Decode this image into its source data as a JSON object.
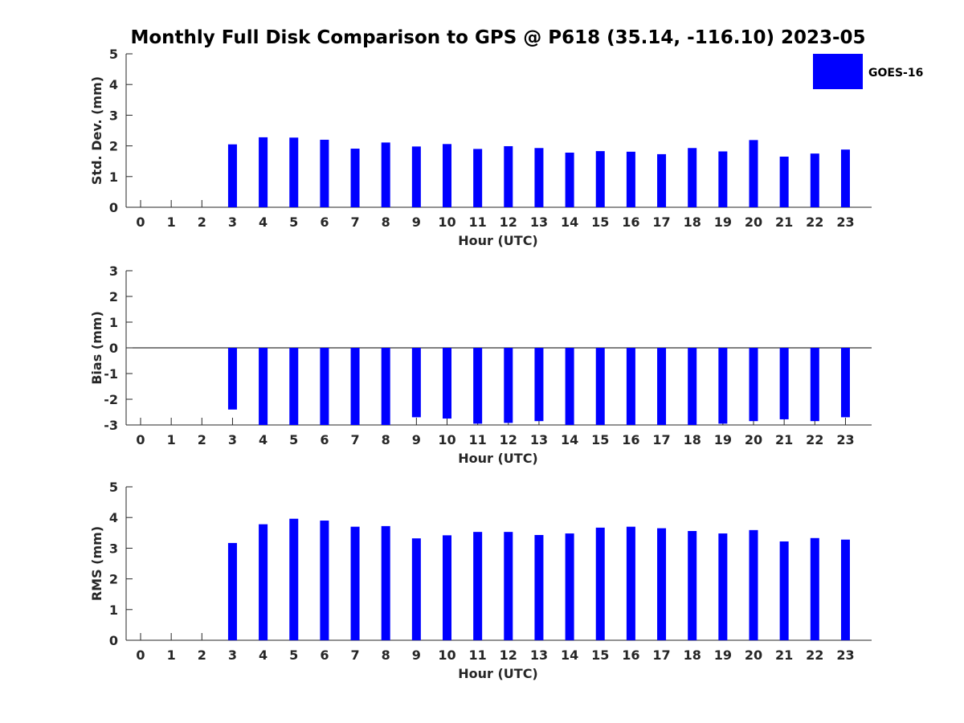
{
  "colors": {
    "bar": "#0000FF",
    "axis": "#262626",
    "background": "#FFFFFF"
  },
  "legend": {
    "label": "GOES-16",
    "placement": "top-right"
  },
  "chart_data": [
    {
      "type": "bar",
      "title": "Monthly Full Disk Comparison to GPS @ P618 (35.14, -116.10) 2023-05",
      "xlabel": "Hour (UTC)",
      "ylabel": "Std. Dev. (mm)",
      "ylim": [
        0,
        5
      ],
      "yticks": [
        "0",
        "1",
        "2",
        "3",
        "4",
        "5"
      ],
      "categories": [
        "0",
        "1",
        "2",
        "3",
        "4",
        "5",
        "6",
        "7",
        "8",
        "9",
        "10",
        "11",
        "12",
        "13",
        "14",
        "15",
        "16",
        "17",
        "18",
        "19",
        "20",
        "21",
        "22",
        "23"
      ],
      "series": [
        {
          "name": "GOES-16",
          "values": [
            null,
            null,
            null,
            2.05,
            2.28,
            2.27,
            2.2,
            1.91,
            2.11,
            1.98,
            2.06,
            1.9,
            1.99,
            1.93,
            1.78,
            1.83,
            1.81,
            1.73,
            1.93,
            1.82,
            2.19,
            1.65,
            1.75,
            1.88
          ]
        }
      ]
    },
    {
      "type": "bar",
      "title": "",
      "xlabel": "Hour (UTC)",
      "ylabel": "Bias (mm)",
      "ylim": [
        -3,
        3
      ],
      "yticks": [
        "-3",
        "-2",
        "-1",
        "0",
        "1",
        "2",
        "3"
      ],
      "categories": [
        "0",
        "1",
        "2",
        "3",
        "4",
        "5",
        "6",
        "7",
        "8",
        "9",
        "10",
        "11",
        "12",
        "13",
        "14",
        "15",
        "16",
        "17",
        "18",
        "19",
        "20",
        "21",
        "22",
        "23"
      ],
      "series": [
        {
          "name": "GOES-16",
          "values": [
            null,
            null,
            null,
            -2.4,
            -3.0,
            -3.0,
            -3.0,
            -3.0,
            -3.0,
            -2.7,
            -2.75,
            -2.95,
            -2.92,
            -2.85,
            -3.0,
            -3.0,
            -3.0,
            -3.0,
            -3.0,
            -2.95,
            -2.85,
            -2.78,
            -2.85,
            -2.7
          ]
        }
      ]
    },
    {
      "type": "bar",
      "title": "",
      "xlabel": "Hour (UTC)",
      "ylabel": "RMS (mm)",
      "ylim": [
        0,
        5
      ],
      "yticks": [
        "0",
        "1",
        "2",
        "3",
        "4",
        "5"
      ],
      "categories": [
        "0",
        "1",
        "2",
        "3",
        "4",
        "5",
        "6",
        "7",
        "8",
        "9",
        "10",
        "11",
        "12",
        "13",
        "14",
        "15",
        "16",
        "17",
        "18",
        "19",
        "20",
        "21",
        "22",
        "23"
      ],
      "series": [
        {
          "name": "GOES-16",
          "values": [
            null,
            null,
            null,
            3.17,
            3.78,
            3.96,
            3.9,
            3.7,
            3.72,
            3.32,
            3.42,
            3.53,
            3.53,
            3.43,
            3.48,
            3.67,
            3.7,
            3.65,
            3.56,
            3.48,
            3.59,
            3.22,
            3.33,
            3.28
          ]
        }
      ]
    }
  ]
}
